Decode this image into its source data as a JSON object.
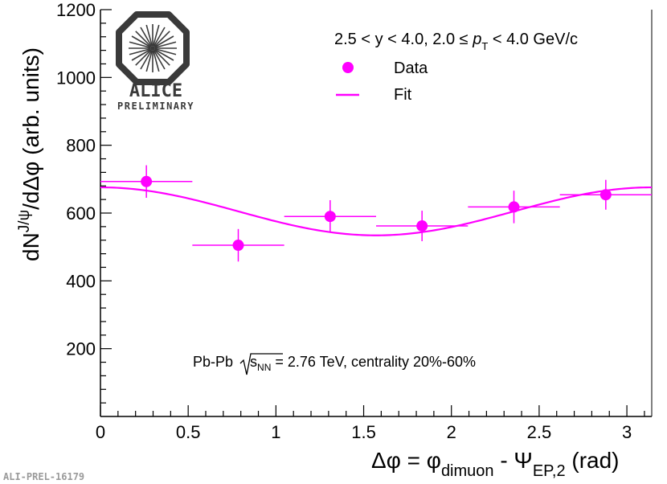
{
  "chart_data": {
    "type": "scatter",
    "xlabel": "Δφ = φ",
    "xlabel_sub1": "dimuon",
    "xlabel_mid": " - Ψ",
    "xlabel_sub2": "EP,2",
    "xlabel_end": " (rad)",
    "ylabel": "dN",
    "ylabel_sup": "J/ψ",
    "ylabel_end": "/dΔφ (arb. units)",
    "xlim": [
      0,
      3.1416
    ],
    "ylim": [
      0,
      1200
    ],
    "x_ticks": [
      0,
      0.5,
      1,
      1.5,
      2,
      2.5,
      3
    ],
    "x_tick_labels": [
      "0",
      "0.5",
      "1",
      "1.5",
      "2",
      "2.5",
      "3"
    ],
    "y_ticks": [
      200,
      400,
      600,
      800,
      1000,
      1200
    ],
    "y_tick_labels": [
      "200",
      "400",
      "600",
      "800",
      "1000",
      "1200"
    ],
    "series": [
      {
        "name": "Data",
        "marker": "circle",
        "color": "#ff00ff",
        "x": [
          0.2618,
          0.7854,
          1.309,
          1.8326,
          2.3562,
          2.8798
        ],
        "x_err": [
          0.2618,
          0.2618,
          0.2618,
          0.2618,
          0.2618,
          0.2618
        ],
        "y": [
          693,
          505,
          590,
          562,
          618,
          654
        ],
        "y_err": [
          48,
          48,
          48,
          45,
          48,
          44
        ]
      },
      {
        "name": "Fit",
        "type": "line",
        "color": "#ff00ff",
        "model": "A*(1 + 2*v2*cos(2x))",
        "A": 605,
        "v2": 0.0585
      }
    ],
    "legend": [
      "Data",
      "Fit"
    ],
    "legend_title": "2.5 < y < 4.0, 2.0 ≤ ",
    "legend_title_pt": "p",
    "legend_title_pt_sub": "T",
    "legend_title_end": " < 4.0 GeV/c",
    "annotation_pre": "Pb-Pb ",
    "annotation_sqrt": "s",
    "annotation_sqrt_sub": "NN",
    "annotation_post": " = 2.76 TeV, centrality 20%-60%"
  },
  "logo": {
    "name": "ALICE",
    "subtitle": "PRELIMINARY"
  },
  "figure_id": "ALI-PREL-16179",
  "colors": {
    "accent": "#ff00ff",
    "axis": "#000000",
    "logo": "#3a3a3a"
  }
}
